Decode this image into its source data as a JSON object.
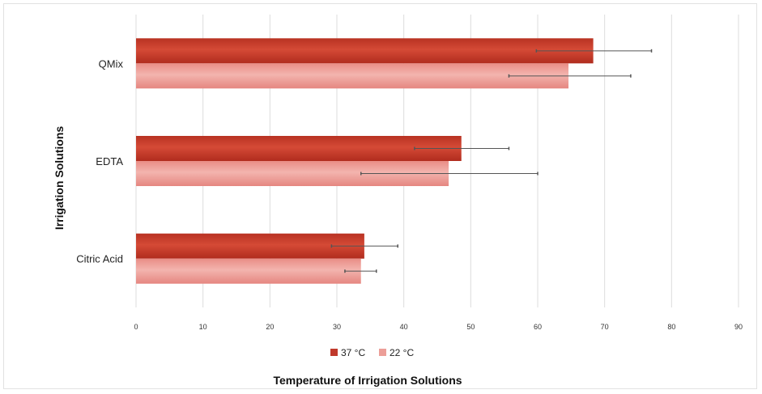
{
  "chart_data": {
    "type": "bar",
    "orientation": "horizontal",
    "title": "",
    "xlabel": "Temperature of Irrigation Solutions",
    "ylabel": "Irrigation Solutions",
    "categories": [
      "QMix",
      "EDTA",
      "Citric Acid"
    ],
    "xlim": [
      0,
      90
    ],
    "xticks": [
      "0",
      "10",
      "20",
      "30",
      "40",
      "50",
      "60",
      "70",
      "80",
      "90"
    ],
    "grid": "vertical",
    "legend_position": "bottom",
    "series": [
      {
        "name": "37 °C",
        "color": "#c0392b",
        "values": [
          68.3,
          48.6,
          34.1
        ],
        "error_low": [
          59.8,
          41.6,
          29.2
        ],
        "error_high": [
          77.0,
          55.7,
          39.1
        ]
      },
      {
        "name": "22 °C",
        "color": "#ec9e98",
        "values": [
          64.6,
          46.7,
          33.6
        ],
        "error_low": [
          55.7,
          33.6,
          31.2
        ],
        "error_high": [
          73.9,
          60.0,
          35.9
        ]
      }
    ]
  }
}
